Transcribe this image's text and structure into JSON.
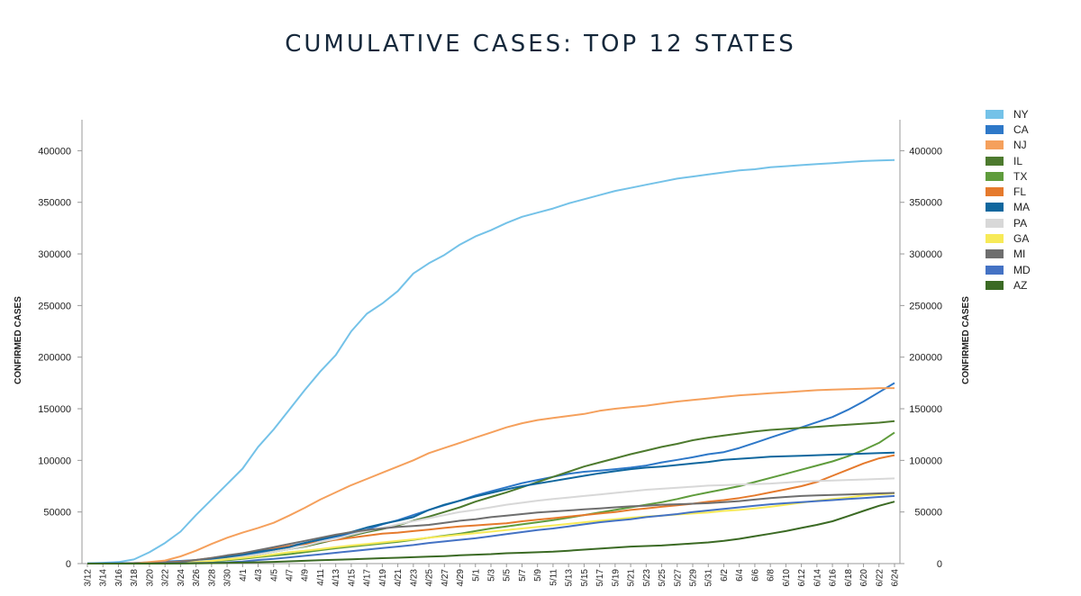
{
  "chart_data": {
    "type": "line",
    "title": "CUMULATIVE CASES: TOP 12 STATES",
    "xlabel": "",
    "ylabel": "CONFIRMED CASES",
    "ylim": [
      0,
      430000
    ],
    "yticks": [
      0,
      50000,
      100000,
      150000,
      200000,
      250000,
      300000,
      350000,
      400000
    ],
    "ytick_labels": [
      "0",
      "50000",
      "100000",
      "150000",
      "200000",
      "250000",
      "300000",
      "350000",
      "400000"
    ],
    "x": [
      "3/12",
      "3/14",
      "3/16",
      "3/18",
      "3/20",
      "3/22",
      "3/24",
      "3/26",
      "3/28",
      "3/30",
      "4/1",
      "4/3",
      "4/5",
      "4/7",
      "4/9",
      "4/11",
      "4/13",
      "4/15",
      "4/17",
      "4/19",
      "4/21",
      "4/23",
      "4/25",
      "4/27",
      "4/29",
      "5/1",
      "5/3",
      "5/5",
      "5/7",
      "5/9",
      "5/11",
      "5/13",
      "5/15",
      "5/17",
      "5/19",
      "5/21",
      "5/23",
      "5/25",
      "5/27",
      "5/29",
      "5/31",
      "6/2",
      "6/4",
      "6/6",
      "6/8",
      "6/10",
      "6/12",
      "6/14",
      "6/16",
      "6/18",
      "6/20",
      "6/22",
      "6/24"
    ],
    "series": [
      {
        "name": "NY",
        "color": "#74c2e8",
        "values": [
          300,
          800,
          1500,
          4000,
          11000,
          20000,
          31000,
          47000,
          62000,
          77000,
          92000,
          113000,
          130000,
          149000,
          168000,
          186000,
          202000,
          225000,
          242000,
          252000,
          264000,
          281000,
          291000,
          299000,
          309000,
          317000,
          323000,
          330000,
          336000,
          340000,
          344000,
          349000,
          353000,
          357000,
          361000,
          364000,
          367000,
          370000,
          373000,
          375000,
          377000,
          379000,
          381000,
          382000,
          384000,
          385000,
          386000,
          387000,
          388000,
          389000,
          390000,
          390500,
          391000
        ]
      },
      {
        "name": "CA",
        "color": "#2e78c8",
        "values": [
          200,
          300,
          400,
          600,
          1200,
          2000,
          2600,
          3500,
          4500,
          6000,
          8000,
          10500,
          13500,
          17000,
          20000,
          23000,
          26000,
          29000,
          33000,
          38000,
          42000,
          47000,
          52000,
          56500,
          61000,
          66000,
          70000,
          74000,
          78000,
          81000,
          84000,
          87000,
          89000,
          90000,
          91500,
          93000,
          95000,
          98000,
          100500,
          103000,
          106000,
          108000,
          112000,
          117000,
          122000,
          127000,
          132000,
          137000,
          142000,
          149000,
          157000,
          166000,
          175000
        ]
      },
      {
        "name": "NJ",
        "color": "#f5a05c",
        "values": [
          0,
          0,
          0,
          300,
          1500,
          3000,
          7000,
          12500,
          19000,
          25000,
          30000,
          34500,
          39500,
          46500,
          54000,
          62000,
          69000,
          76000,
          82000,
          88000,
          94000,
          100000,
          107000,
          112000,
          117000,
          122000,
          127000,
          132000,
          136000,
          139000,
          141000,
          143000,
          145000,
          148000,
          150000,
          151500,
          153000,
          155000,
          157000,
          158500,
          160000,
          161500,
          163000,
          164000,
          165000,
          166000,
          167000,
          168000,
          168500,
          169000,
          169500,
          170000,
          170000
        ]
      },
      {
        "name": "IL",
        "color": "#4d7a2e",
        "values": [
          0,
          0,
          0,
          0,
          0,
          500,
          1000,
          1800,
          3000,
          5000,
          6500,
          9000,
          11500,
          14000,
          16500,
          20000,
          23500,
          27000,
          30500,
          33500,
          37000,
          41500,
          45500,
          50000,
          54500,
          60000,
          64500,
          69000,
          74000,
          79000,
          84000,
          89000,
          94000,
          98000,
          102000,
          106000,
          109500,
          113000,
          116000,
          119500,
          122000,
          124000,
          126000,
          128000,
          129500,
          130500,
          131500,
          132500,
          133500,
          134500,
          135500,
          136500,
          138000
        ]
      },
      {
        "name": "TX",
        "color": "#5f9c3c",
        "values": [
          0,
          0,
          0,
          0,
          0,
          300,
          800,
          1300,
          2200,
          3200,
          4500,
          6200,
          7800,
          9200,
          11000,
          13000,
          14800,
          16500,
          18000,
          19500,
          21000,
          23000,
          25000,
          27000,
          29000,
          31500,
          34000,
          36000,
          38000,
          40000,
          42000,
          44500,
          47000,
          49500,
          52000,
          54500,
          57000,
          59500,
          62500,
          66000,
          69000,
          72000,
          75000,
          79000,
          83000,
          87000,
          91000,
          95000,
          99000,
          104000,
          110000,
          117000,
          127000
        ]
      },
      {
        "name": "FL",
        "color": "#e57a2d",
        "values": [
          0,
          0,
          0,
          300,
          600,
          1100,
          2000,
          3500,
          5500,
          7500,
          10000,
          12000,
          14500,
          17000,
          19000,
          21000,
          23000,
          25000,
          27000,
          29000,
          30000,
          31500,
          33000,
          34500,
          36000,
          37000,
          38000,
          39000,
          41000,
          42500,
          44000,
          45500,
          47000,
          48500,
          50000,
          52000,
          53500,
          55000,
          56500,
          58000,
          60000,
          61500,
          63500,
          66000,
          69000,
          72000,
          75000,
          79000,
          85000,
          91000,
          97000,
          102000,
          105000
        ]
      },
      {
        "name": "MA",
        "color": "#10679e",
        "values": [
          0,
          0,
          0,
          0,
          300,
          700,
          1200,
          2500,
          4500,
          7000,
          9000,
          11500,
          13500,
          16000,
          20000,
          23500,
          27000,
          30500,
          35000,
          38500,
          41500,
          45000,
          52000,
          57000,
          61000,
          65000,
          68500,
          72000,
          75000,
          77500,
          80000,
          82500,
          85000,
          87500,
          89500,
          91500,
          93000,
          94000,
          95500,
          97000,
          98500,
          100500,
          101500,
          102500,
          103500,
          104000,
          104500,
          105000,
          105500,
          106000,
          106500,
          107000,
          107500
        ]
      },
      {
        "name": "PA",
        "color": "#d8d8d8",
        "values": [
          0,
          0,
          0,
          0,
          200,
          500,
          1000,
          2000,
          3000,
          4500,
          6500,
          9000,
          11500,
          14000,
          17000,
          21000,
          24000,
          28000,
          31500,
          34500,
          38000,
          41000,
          44000,
          47000,
          50000,
          52000,
          54500,
          57000,
          59000,
          61000,
          62500,
          64000,
          65500,
          67000,
          68500,
          70000,
          71500,
          72500,
          73500,
          74500,
          75500,
          76000,
          76500,
          77000,
          77500,
          78500,
          79500,
          80000,
          80500,
          81000,
          81500,
          82000,
          82500
        ]
      },
      {
        "name": "GA",
        "color": "#f7ea58",
        "values": [
          0,
          0,
          0,
          0,
          200,
          400,
          800,
          1500,
          2500,
          4000,
          5500,
          7000,
          9000,
          11000,
          12500,
          14000,
          16000,
          17500,
          19000,
          20500,
          22000,
          23500,
          25000,
          26500,
          28000,
          29500,
          31000,
          32500,
          34000,
          35500,
          37000,
          38500,
          40000,
          41500,
          43000,
          44500,
          45500,
          46500,
          47500,
          48500,
          49500,
          51000,
          52000,
          53500,
          55000,
          57000,
          59000,
          61000,
          62500,
          64000,
          66000,
          67000,
          68000
        ]
      },
      {
        "name": "MI",
        "color": "#6e6e6e",
        "values": [
          0,
          0,
          0,
          0,
          300,
          800,
          1500,
          3500,
          5500,
          8000,
          10000,
          13000,
          16000,
          19000,
          22000,
          25000,
          28000,
          30500,
          32500,
          34000,
          35500,
          36500,
          37500,
          39500,
          41500,
          43000,
          45000,
          46500,
          48000,
          49500,
          50500,
          51500,
          52500,
          53500,
          54500,
          55500,
          56000,
          57000,
          57500,
          58000,
          58500,
          59500,
          60500,
          62000,
          63500,
          64500,
          65500,
          66000,
          66500,
          67000,
          67500,
          68000,
          68500
        ]
      },
      {
        "name": "MD",
        "color": "#4472c4",
        "values": [
          0,
          0,
          0,
          0,
          0,
          200,
          300,
          500,
          800,
          1200,
          2000,
          3500,
          4500,
          6000,
          7500,
          9000,
          10500,
          12000,
          13500,
          15000,
          16500,
          18000,
          20000,
          21500,
          23000,
          24500,
          26500,
          28500,
          30500,
          32500,
          34000,
          36000,
          38000,
          40000,
          41500,
          43000,
          45000,
          46500,
          48000,
          50000,
          51500,
          53000,
          54500,
          56000,
          57500,
          58500,
          59500,
          60500,
          61500,
          62500,
          63500,
          64500,
          65500
        ]
      },
      {
        "name": "AZ",
        "color": "#3b6a24",
        "values": [
          0,
          0,
          0,
          0,
          0,
          0,
          100,
          200,
          400,
          700,
          1000,
          1300,
          1700,
          2200,
          2700,
          3200,
          3700,
          4200,
          4700,
          5200,
          5700,
          6200,
          6700,
          7200,
          8000,
          8600,
          9200,
          10000,
          10500,
          11000,
          11500,
          12500,
          13500,
          14500,
          15500,
          16500,
          17000,
          17500,
          18500,
          19500,
          20500,
          22000,
          24000,
          26500,
          29000,
          31500,
          34500,
          37500,
          41000,
          46000,
          51000,
          56000,
          60000
        ]
      }
    ]
  }
}
